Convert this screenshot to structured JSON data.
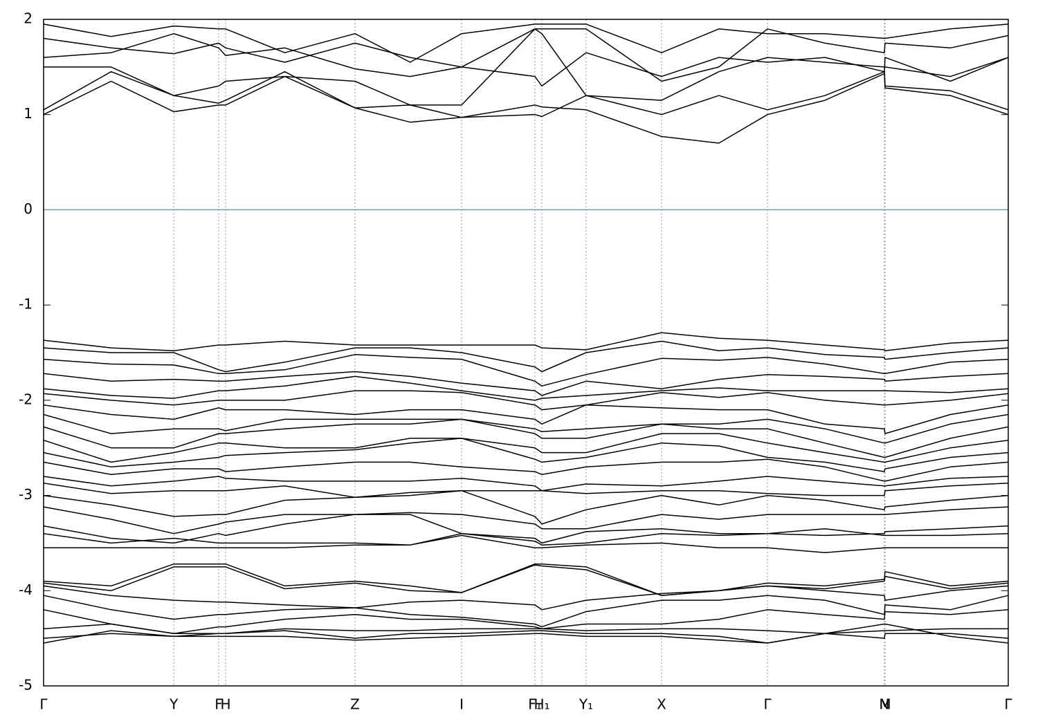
{
  "chart_data": {
    "type": "line",
    "color": "#000000",
    "xlim": [
      0,
      1
    ],
    "xticks": [
      {
        "value": 0,
        "label": "Γ"
      },
      {
        "value": 0.135,
        "label": "Y"
      },
      {
        "value": 0.1815,
        "label": "F"
      },
      {
        "value": 0.1887,
        "label": "H"
      },
      {
        "value": 0.3228,
        "label": "Z"
      },
      {
        "value": 0.4333,
        "label": "I"
      },
      {
        "value": 0.5093,
        "label": "F₁"
      },
      {
        "value": 0.5165,
        "label": "H₁"
      },
      {
        "value": 0.5624,
        "label": "Y₁"
      },
      {
        "value": 0.6406,
        "label": "X"
      },
      {
        "value": 0.7504,
        "label": "Γ"
      },
      {
        "value": 0.8716,
        "label": "N"
      },
      {
        "value": 0.8723,
        "label": "M"
      },
      {
        "value": 1,
        "label": "Γ"
      }
    ],
    "ylim": [
      -5,
      2
    ],
    "yticks": [
      -5,
      -4,
      -3,
      -2,
      -1,
      0,
      1,
      2
    ],
    "reference_line": {
      "value": 0,
      "color": "#4bacc6"
    },
    "x": [
      0,
      0.07,
      0.135,
      0.1815,
      0.1887,
      0.25,
      0.3228,
      0.38,
      0.4333,
      0.5093,
      0.5165,
      0.5624,
      0.6406,
      0.7,
      0.7504,
      0.81,
      0.8716,
      0.8723,
      0.94,
      1
    ],
    "series": [
      {
        "values": [
          1.0,
          1.35,
          1.03,
          1.1,
          1.1,
          1.4,
          1.07,
          0.92,
          0.97,
          1.1,
          1.08,
          1.05,
          0.77,
          0.7,
          1.0,
          1.15,
          1.43,
          1.28,
          1.2,
          1.0
        ]
      },
      {
        "values": [
          1.05,
          1.45,
          1.2,
          1.12,
          1.15,
          1.45,
          1.07,
          1.1,
          0.97,
          1.0,
          0.98,
          1.2,
          1.0,
          1.2,
          1.05,
          1.2,
          1.45,
          1.3,
          1.25,
          1.05
        ]
      },
      {
        "values": [
          1.5,
          1.5,
          1.2,
          1.3,
          1.35,
          1.4,
          1.35,
          1.1,
          1.1,
          1.9,
          1.85,
          1.2,
          1.15,
          1.45,
          1.6,
          1.55,
          1.5,
          1.5,
          1.4,
          1.6
        ]
      },
      {
        "values": [
          1.6,
          1.65,
          1.85,
          1.7,
          1.62,
          1.7,
          1.48,
          1.4,
          1.5,
          1.4,
          1.3,
          1.65,
          1.4,
          1.6,
          1.55,
          1.6,
          1.45,
          1.6,
          1.35,
          1.6
        ]
      },
      {
        "values": [
          1.8,
          1.7,
          1.64,
          1.75,
          1.7,
          1.55,
          1.75,
          1.6,
          1.5,
          1.9,
          1.9,
          1.9,
          1.35,
          1.5,
          1.9,
          1.75,
          1.65,
          1.75,
          1.7,
          1.83
        ]
      },
      {
        "values": [
          1.95,
          1.82,
          1.93,
          1.9,
          1.9,
          1.65,
          1.85,
          1.55,
          1.85,
          1.95,
          1.95,
          1.95,
          1.65,
          1.9,
          1.85,
          1.85,
          1.8,
          1.8,
          1.9,
          1.95
        ]
      },
      {
        "values": [
          -1.37,
          -1.45,
          -1.48,
          -1.42,
          -1.42,
          -1.38,
          -1.42,
          -1.42,
          -1.42,
          -1.42,
          -1.45,
          -1.47,
          -1.29,
          -1.35,
          -1.37,
          -1.42,
          -1.47,
          -1.48,
          -1.4,
          -1.37
        ]
      },
      {
        "values": [
          -1.45,
          -1.5,
          -1.5,
          -1.68,
          -1.7,
          -1.6,
          -1.45,
          -1.45,
          -1.5,
          -1.65,
          -1.7,
          -1.5,
          -1.38,
          -1.48,
          -1.45,
          -1.52,
          -1.55,
          -1.57,
          -1.5,
          -1.45
        ]
      },
      {
        "values": [
          -1.57,
          -1.62,
          -1.63,
          -1.72,
          -1.72,
          -1.68,
          -1.52,
          -1.55,
          -1.57,
          -1.8,
          -1.85,
          -1.73,
          -1.56,
          -1.58,
          -1.55,
          -1.62,
          -1.72,
          -1.72,
          -1.6,
          -1.57
        ]
      },
      {
        "values": [
          -1.72,
          -1.8,
          -1.78,
          -1.8,
          -1.8,
          -1.75,
          -1.7,
          -1.75,
          -1.82,
          -1.9,
          -1.95,
          -1.8,
          -1.88,
          -1.78,
          -1.73,
          -1.75,
          -1.78,
          -1.8,
          -1.75,
          -1.72
        ]
      },
      {
        "values": [
          -1.88,
          -1.95,
          -1.98,
          -1.9,
          -1.9,
          -1.85,
          -1.75,
          -1.82,
          -1.9,
          -2.0,
          -1.98,
          -1.95,
          -1.9,
          -1.87,
          -1.9,
          -1.9,
          -1.9,
          -1.9,
          -1.92,
          -1.88
        ]
      },
      {
        "values": [
          -1.93,
          -2.0,
          -2.05,
          -2.0,
          -2.0,
          -2.0,
          -1.9,
          -1.9,
          -1.92,
          -2.05,
          -2.1,
          -2.05,
          -1.92,
          -1.97,
          -1.92,
          -2.0,
          -2.05,
          -2.05,
          -2.0,
          -1.93
        ]
      },
      {
        "values": [
          -2.05,
          -2.15,
          -2.2,
          -2.08,
          -2.1,
          -2.1,
          -2.15,
          -2.1,
          -2.1,
          -2.2,
          -2.25,
          -2.05,
          -2.08,
          -2.1,
          -2.1,
          -2.25,
          -2.3,
          -2.35,
          -2.15,
          -2.05
        ]
      },
      {
        "values": [
          -2.15,
          -2.35,
          -2.3,
          -2.3,
          -2.32,
          -2.2,
          -2.2,
          -2.2,
          -2.2,
          -2.3,
          -2.33,
          -2.3,
          -2.25,
          -2.25,
          -2.2,
          -2.3,
          -2.45,
          -2.45,
          -2.25,
          -2.15
        ]
      },
      {
        "values": [
          -2.28,
          -2.5,
          -2.5,
          -2.35,
          -2.35,
          -2.3,
          -2.25,
          -2.25,
          -2.2,
          -2.35,
          -2.4,
          -2.4,
          -2.25,
          -2.3,
          -2.3,
          -2.45,
          -2.6,
          -2.6,
          -2.4,
          -2.28
        ]
      },
      {
        "values": [
          -2.42,
          -2.65,
          -2.55,
          -2.45,
          -2.45,
          -2.5,
          -2.5,
          -2.4,
          -2.4,
          -2.5,
          -2.55,
          -2.55,
          -2.35,
          -2.35,
          -2.45,
          -2.55,
          -2.65,
          -2.65,
          -2.5,
          -2.42
        ]
      },
      {
        "values": [
          -2.55,
          -2.7,
          -2.65,
          -2.6,
          -2.58,
          -2.55,
          -2.52,
          -2.45,
          -2.4,
          -2.62,
          -2.65,
          -2.6,
          -2.45,
          -2.48,
          -2.6,
          -2.65,
          -2.75,
          -2.72,
          -2.6,
          -2.55
        ]
      },
      {
        "values": [
          -2.65,
          -2.78,
          -2.72,
          -2.72,
          -2.75,
          -2.7,
          -2.65,
          -2.65,
          -2.7,
          -2.75,
          -2.78,
          -2.7,
          -2.65,
          -2.65,
          -2.62,
          -2.7,
          -2.85,
          -2.85,
          -2.7,
          -2.65
        ]
      },
      {
        "values": [
          -2.8,
          -2.9,
          -2.85,
          -2.8,
          -2.82,
          -2.85,
          -2.85,
          -2.85,
          -2.82,
          -2.9,
          -2.95,
          -2.88,
          -2.9,
          -2.85,
          -2.8,
          -2.85,
          -2.9,
          -2.9,
          -2.82,
          -2.8
        ]
      },
      {
        "values": [
          -2.87,
          -2.98,
          -2.95,
          -2.95,
          -2.95,
          -2.9,
          -3.02,
          -3.0,
          -2.95,
          -2.95,
          -2.95,
          -2.98,
          -2.95,
          -2.95,
          -2.98,
          -3.0,
          -3.0,
          -2.95,
          -2.9,
          -2.87
        ]
      },
      {
        "values": [
          -3.0,
          -3.1,
          -3.22,
          -3.2,
          -3.2,
          -3.05,
          -3.02,
          -2.97,
          -2.95,
          -3.22,
          -3.3,
          -3.15,
          -3.0,
          -3.1,
          -3.0,
          -3.05,
          -3.15,
          -3.12,
          -3.05,
          -3.0
        ]
      },
      {
        "values": [
          -3.12,
          -3.25,
          -3.4,
          -3.3,
          -3.28,
          -3.2,
          -3.2,
          -3.18,
          -3.2,
          -3.3,
          -3.35,
          -3.35,
          -3.2,
          -3.25,
          -3.2,
          -3.2,
          -3.2,
          -3.2,
          -3.15,
          -3.12
        ]
      },
      {
        "values": [
          -3.32,
          -3.45,
          -3.5,
          -3.4,
          -3.42,
          -3.3,
          -3.2,
          -3.2,
          -3.4,
          -3.45,
          -3.5,
          -3.38,
          -3.35,
          -3.4,
          -3.4,
          -3.42,
          -3.4,
          -3.38,
          -3.35,
          -3.32
        ]
      },
      {
        "values": [
          -3.4,
          -3.5,
          -3.45,
          -3.5,
          -3.5,
          -3.5,
          -3.5,
          -3.52,
          -3.4,
          -3.48,
          -3.52,
          -3.5,
          -3.4,
          -3.42,
          -3.4,
          -3.35,
          -3.42,
          -3.42,
          -3.42,
          -3.4
        ]
      },
      {
        "values": [
          -3.55,
          -3.55,
          -3.55,
          -3.55,
          -3.55,
          -3.55,
          -3.52,
          -3.52,
          -3.42,
          -3.55,
          -3.55,
          -3.52,
          -3.5,
          -3.55,
          -3.55,
          -3.6,
          -3.55,
          -3.55,
          -3.55,
          -3.55
        ]
      },
      {
        "values": [
          -3.9,
          -3.95,
          -3.72,
          -3.72,
          -3.72,
          -3.95,
          -3.9,
          -3.95,
          -4.02,
          -3.72,
          -3.72,
          -3.75,
          -4.05,
          -4.0,
          -3.92,
          -3.95,
          -3.88,
          -3.8,
          -3.95,
          -3.9
        ]
      },
      {
        "values": [
          -3.92,
          -4.0,
          -3.75,
          -3.75,
          -3.75,
          -3.98,
          -3.92,
          -4.0,
          -4.02,
          -3.73,
          -3.74,
          -3.78,
          -4.05,
          -4.0,
          -3.95,
          -3.98,
          -3.9,
          -3.85,
          -3.98,
          -3.92
        ]
      },
      {
        "values": [
          -3.95,
          -4.05,
          -4.1,
          -4.12,
          -4.12,
          -4.15,
          -4.18,
          -4.12,
          -4.1,
          -4.15,
          -4.2,
          -4.1,
          -4.03,
          -4.0,
          -3.95,
          -4.0,
          -4.05,
          -4.1,
          -4.0,
          -3.95
        ]
      },
      {
        "values": [
          -4.05,
          -4.2,
          -4.3,
          -4.25,
          -4.25,
          -4.2,
          -4.18,
          -4.25,
          -4.28,
          -4.35,
          -4.38,
          -4.22,
          -4.1,
          -4.1,
          -4.05,
          -4.1,
          -4.25,
          -4.15,
          -4.2,
          -4.05
        ]
      },
      {
        "values": [
          -4.2,
          -4.35,
          -4.45,
          -4.38,
          -4.38,
          -4.3,
          -4.25,
          -4.3,
          -4.3,
          -4.38,
          -4.4,
          -4.35,
          -4.35,
          -4.3,
          -4.2,
          -4.25,
          -4.3,
          -4.22,
          -4.25,
          -4.2
        ]
      },
      {
        "values": [
          -4.4,
          -4.35,
          -4.45,
          -4.45,
          -4.45,
          -4.4,
          -4.42,
          -4.42,
          -4.4,
          -4.4,
          -4.4,
          -4.42,
          -4.4,
          -4.4,
          -4.42,
          -4.45,
          -4.42,
          -4.42,
          -4.4,
          -4.4
        ]
      },
      {
        "values": [
          -4.5,
          -4.45,
          -4.48,
          -4.45,
          -4.45,
          -4.42,
          -4.5,
          -4.45,
          -4.45,
          -4.42,
          -4.42,
          -4.45,
          -4.45,
          -4.48,
          -4.55,
          -4.45,
          -4.5,
          -4.45,
          -4.45,
          -4.5
        ]
      },
      {
        "values": [
          -4.55,
          -4.42,
          -4.48,
          -4.48,
          -4.48,
          -4.48,
          -4.52,
          -4.5,
          -4.48,
          -4.45,
          -4.45,
          -4.48,
          -4.48,
          -4.52,
          -4.55,
          -4.45,
          -4.35,
          -4.35,
          -4.48,
          -4.55
        ]
      }
    ]
  }
}
